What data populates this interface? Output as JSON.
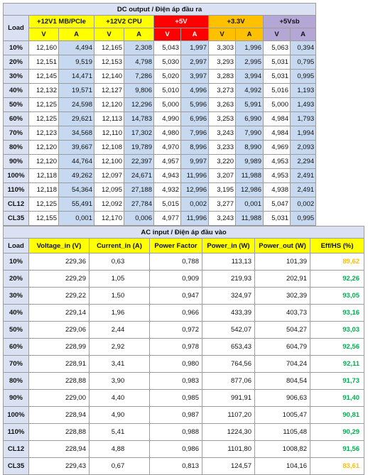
{
  "dc": {
    "title": "DC output / Điện áp đầu ra",
    "load_label": "Load",
    "rails": [
      {
        "name": "+12V1 MB/PCIe",
        "color": "#ffff00"
      },
      {
        "name": "+12V2 CPU",
        "color": "#ffff00"
      },
      {
        "name": "+5V",
        "color": "#ff0000"
      },
      {
        "name": "+3.3V",
        "color": "#ffc000"
      },
      {
        "name": "+5Vsb",
        "color": "#b4a7d6"
      }
    ],
    "sub_v": "V",
    "sub_a": "A",
    "rows": [
      {
        "load": "10%",
        "v": [
          "12,160",
          "4,494",
          "12,165",
          "2,308",
          "5,043",
          "1,997",
          "3,303",
          "1,996",
          "5,063",
          "0,394"
        ]
      },
      {
        "load": "20%",
        "v": [
          "12,151",
          "9,519",
          "12,153",
          "4,798",
          "5,030",
          "2,997",
          "3,293",
          "2,995",
          "5,031",
          "0,795"
        ]
      },
      {
        "load": "30%",
        "v": [
          "12,145",
          "14,471",
          "12,140",
          "7,286",
          "5,020",
          "3,997",
          "3,283",
          "3,994",
          "5,031",
          "0,995"
        ]
      },
      {
        "load": "40%",
        "v": [
          "12,132",
          "19,571",
          "12,127",
          "9,806",
          "5,010",
          "4,996",
          "3,273",
          "4,992",
          "5,016",
          "1,193"
        ]
      },
      {
        "load": "50%",
        "v": [
          "12,125",
          "24,598",
          "12,120",
          "12,296",
          "5,000",
          "5,996",
          "3,263",
          "5,991",
          "5,000",
          "1,493"
        ]
      },
      {
        "load": "60%",
        "v": [
          "12,125",
          "29,621",
          "12,113",
          "14,783",
          "4,990",
          "6,996",
          "3,253",
          "6,990",
          "4,984",
          "1,793"
        ]
      },
      {
        "load": "70%",
        "v": [
          "12,123",
          "34,568",
          "12,110",
          "17,302",
          "4,980",
          "7,996",
          "3,243",
          "7,990",
          "4,984",
          "1,994"
        ]
      },
      {
        "load": "80%",
        "v": [
          "12,120",
          "39,667",
          "12,108",
          "19,789",
          "4,970",
          "8,996",
          "3,233",
          "8,990",
          "4,969",
          "2,093"
        ]
      },
      {
        "load": "90%",
        "v": [
          "12,120",
          "44,764",
          "12,100",
          "22,397",
          "4,957",
          "9,997",
          "3,220",
          "9,989",
          "4,953",
          "2,294"
        ]
      },
      {
        "load": "100%",
        "v": [
          "12,118",
          "49,262",
          "12,097",
          "24,671",
          "4,943",
          "11,996",
          "3,207",
          "11,988",
          "4,953",
          "2,491"
        ]
      },
      {
        "load": "110%",
        "v": [
          "12,118",
          "54,364",
          "12,095",
          "27,188",
          "4,932",
          "12,996",
          "3,195",
          "12,986",
          "4,938",
          "2,491"
        ]
      },
      {
        "load": "CL12",
        "v": [
          "12,125",
          "55,491",
          "12,092",
          "27,784",
          "5,015",
          "0,002",
          "3,277",
          "0,001",
          "5,047",
          "0,002"
        ]
      },
      {
        "load": "CL35",
        "v": [
          "12,155",
          "0,001",
          "12,170",
          "0,006",
          "4,977",
          "11,996",
          "3,243",
          "11,988",
          "5,031",
          "0,995"
        ]
      }
    ]
  },
  "ac": {
    "title": "AC input / Điện áp đầu vào",
    "headers": [
      "Load",
      "Voltage_in (V)",
      "Current_in (A)",
      "Power Factor",
      "Power_in (W)",
      "Power_out (W)",
      "Eff/HS (%)"
    ],
    "eff_colors": {
      "high": "#00b050",
      "low": "#ffc000"
    },
    "rows": [
      {
        "load": "10%",
        "voltage": "229,36",
        "current": "0,63",
        "pf": "0,788",
        "pin": "113,13",
        "pout": "101,39",
        "eff": "89,62",
        "eff_level": "low"
      },
      {
        "load": "20%",
        "voltage": "229,29",
        "current": "1,05",
        "pf": "0,909",
        "pin": "219,93",
        "pout": "202,91",
        "eff": "92,26",
        "eff_level": "high"
      },
      {
        "load": "30%",
        "voltage": "229,22",
        "current": "1,50",
        "pf": "0,947",
        "pin": "324,97",
        "pout": "302,39",
        "eff": "93,05",
        "eff_level": "high"
      },
      {
        "load": "40%",
        "voltage": "229,14",
        "current": "1,96",
        "pf": "0,966",
        "pin": "433,39",
        "pout": "403,73",
        "eff": "93,16",
        "eff_level": "high"
      },
      {
        "load": "50%",
        "voltage": "229,06",
        "current": "2,44",
        "pf": "0,972",
        "pin": "542,07",
        "pout": "504,27",
        "eff": "93,03",
        "eff_level": "high"
      },
      {
        "load": "60%",
        "voltage": "228,99",
        "current": "2,92",
        "pf": "0,978",
        "pin": "653,43",
        "pout": "604,79",
        "eff": "92,56",
        "eff_level": "high"
      },
      {
        "load": "70%",
        "voltage": "228,91",
        "current": "3,41",
        "pf": "0,980",
        "pin": "764,56",
        "pout": "704,24",
        "eff": "92,11",
        "eff_level": "high"
      },
      {
        "load": "80%",
        "voltage": "228,88",
        "current": "3,90",
        "pf": "0,983",
        "pin": "877,06",
        "pout": "804,54",
        "eff": "91,73",
        "eff_level": "high"
      },
      {
        "load": "90%",
        "voltage": "229,00",
        "current": "4,40",
        "pf": "0,985",
        "pin": "991,91",
        "pout": "906,63",
        "eff": "91,40",
        "eff_level": "high"
      },
      {
        "load": "100%",
        "voltage": "228,94",
        "current": "4,90",
        "pf": "0,987",
        "pin": "1107,20",
        "pout": "1005,47",
        "eff": "90,81",
        "eff_level": "high"
      },
      {
        "load": "110%",
        "voltage": "228,88",
        "current": "5,41",
        "pf": "0,988",
        "pin": "1224,30",
        "pout": "1105,48",
        "eff": "90,29",
        "eff_level": "high"
      },
      {
        "load": "CL12",
        "voltage": "228,94",
        "current": "4,88",
        "pf": "0,986",
        "pin": "1101,80",
        "pout": "1008,82",
        "eff": "91,56",
        "eff_level": "high"
      },
      {
        "load": "CL35",
        "voltage": "229,43",
        "current": "0,67",
        "pf": "0,813",
        "pin": "124,57",
        "pout": "104,16",
        "eff": "83,61",
        "eff_level": "low"
      }
    ]
  }
}
